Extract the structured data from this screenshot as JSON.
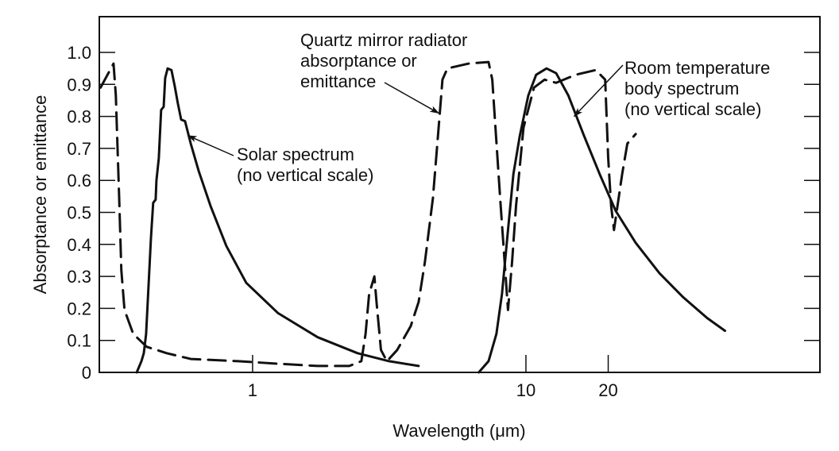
{
  "chart_data": {
    "type": "line",
    "title": "",
    "xlabel": "Wavelength (μm)",
    "ylabel": "Absorptance or emittance",
    "xscale": "log",
    "xlim": [
      0.275,
      119
    ],
    "ylim": [
      0,
      1.1
    ],
    "grid": false,
    "x_ticks": [
      {
        "value": 1,
        "label": "1"
      },
      {
        "value": 10,
        "label": "10"
      },
      {
        "value": 20,
        "label": "20"
      }
    ],
    "y_ticks": [
      {
        "value": 0,
        "label": "0"
      },
      {
        "value": 0.1,
        "label": "0.1"
      },
      {
        "value": 0.2,
        "label": "0.2"
      },
      {
        "value": 0.3,
        "label": "0.3"
      },
      {
        "value": 0.4,
        "label": "0.4"
      },
      {
        "value": 0.5,
        "label": "0.5"
      },
      {
        "value": 0.6,
        "label": "0.6"
      },
      {
        "value": 0.7,
        "label": "0.7"
      },
      {
        "value": 0.8,
        "label": "0.8"
      },
      {
        "value": 0.9,
        "label": "0.9"
      },
      {
        "value": 1.0,
        "label": "1.0"
      }
    ],
    "series": [
      {
        "name": "Solar spectrum",
        "style": "solid",
        "color": "#111111",
        "x": [
          0.377,
          0.392,
          0.4,
          0.408,
          0.425,
          0.433,
          0.442,
          0.445,
          0.454,
          0.463,
          0.473,
          0.479,
          0.489,
          0.505,
          0.519,
          0.533,
          0.548,
          0.566,
          0.594,
          0.635,
          0.702,
          0.802,
          0.948,
          1.24,
          1.73,
          2.42,
          3.16,
          4.05
        ],
        "y": [
          0,
          0.035,
          0.06,
          0.12,
          0.42,
          0.53,
          0.54,
          0.6,
          0.67,
          0.82,
          0.83,
          0.92,
          0.95,
          0.945,
          0.895,
          0.84,
          0.79,
          0.785,
          0.715,
          0.63,
          0.52,
          0.395,
          0.28,
          0.185,
          0.11,
          0.06,
          0.035,
          0.02
        ]
      },
      {
        "name": "Quartz mirror radiator absorptance or emittance",
        "style": "dashed",
        "color": "#111111",
        "x": [
          0.278,
          0.31,
          0.316,
          0.325,
          0.331,
          0.34,
          0.366,
          0.41,
          0.485,
          0.594,
          0.886,
          1.24,
          1.73,
          2.26,
          2.5,
          2.59,
          2.67,
          2.79,
          2.84,
          2.95,
          3.1,
          3.38,
          3.79,
          4.05,
          4.27,
          4.57,
          4.82,
          4.95,
          5.16,
          6.17,
          7.3,
          7.53,
          8.05,
          8.6,
          8.9,
          9.2,
          9.8,
          10.7,
          11.7,
          12.9,
          15.2,
          18.0,
          19.5,
          20.0,
          20.5,
          21.0,
          21.5,
          22.5,
          23.5,
          25.2
        ],
        "y": [
          0.89,
          0.965,
          0.865,
          0.545,
          0.32,
          0.195,
          0.12,
          0.08,
          0.06,
          0.042,
          0.035,
          0.027,
          0.02,
          0.02,
          0.035,
          0.12,
          0.245,
          0.3,
          0.22,
          0.07,
          0.035,
          0.07,
          0.145,
          0.22,
          0.345,
          0.545,
          0.79,
          0.915,
          0.95,
          0.965,
          0.97,
          0.915,
          0.545,
          0.195,
          0.345,
          0.52,
          0.765,
          0.89,
          0.915,
          0.905,
          0.93,
          0.945,
          0.915,
          0.67,
          0.52,
          0.445,
          0.505,
          0.62,
          0.715,
          0.745
        ]
      },
      {
        "name": "Room temperature body spectrum",
        "style": "solid",
        "color": "#111111",
        "x": [
          6.72,
          7.3,
          7.8,
          8.17,
          8.6,
          9.0,
          9.5,
          10.2,
          10.9,
          11.9,
          12.9,
          14.3,
          16.3,
          18.6,
          21.3,
          25.2,
          30.8,
          37.6,
          46.0,
          53.5
        ],
        "y": [
          0,
          0.035,
          0.12,
          0.245,
          0.445,
          0.62,
          0.74,
          0.865,
          0.93,
          0.95,
          0.935,
          0.865,
          0.74,
          0.62,
          0.505,
          0.405,
          0.31,
          0.235,
          0.17,
          0.13
        ]
      }
    ],
    "annotations": [
      {
        "id": "solar",
        "lines": [
          "Solar spectrum",
          "(no vertical scale)"
        ],
        "arrow_to": {
          "x": 0.58,
          "y": 0.74
        }
      },
      {
        "id": "quartz",
        "lines": [
          "Quartz mirror radiator",
          "absorptance or",
          "emittance"
        ],
        "arrow_to": {
          "x": 4.8,
          "y": 0.81
        }
      },
      {
        "id": "room",
        "lines": [
          "Room temperature",
          "body spectrum",
          "(no vertical scale)"
        ],
        "arrow_to": {
          "x": 15.0,
          "y": 0.8
        }
      }
    ]
  }
}
